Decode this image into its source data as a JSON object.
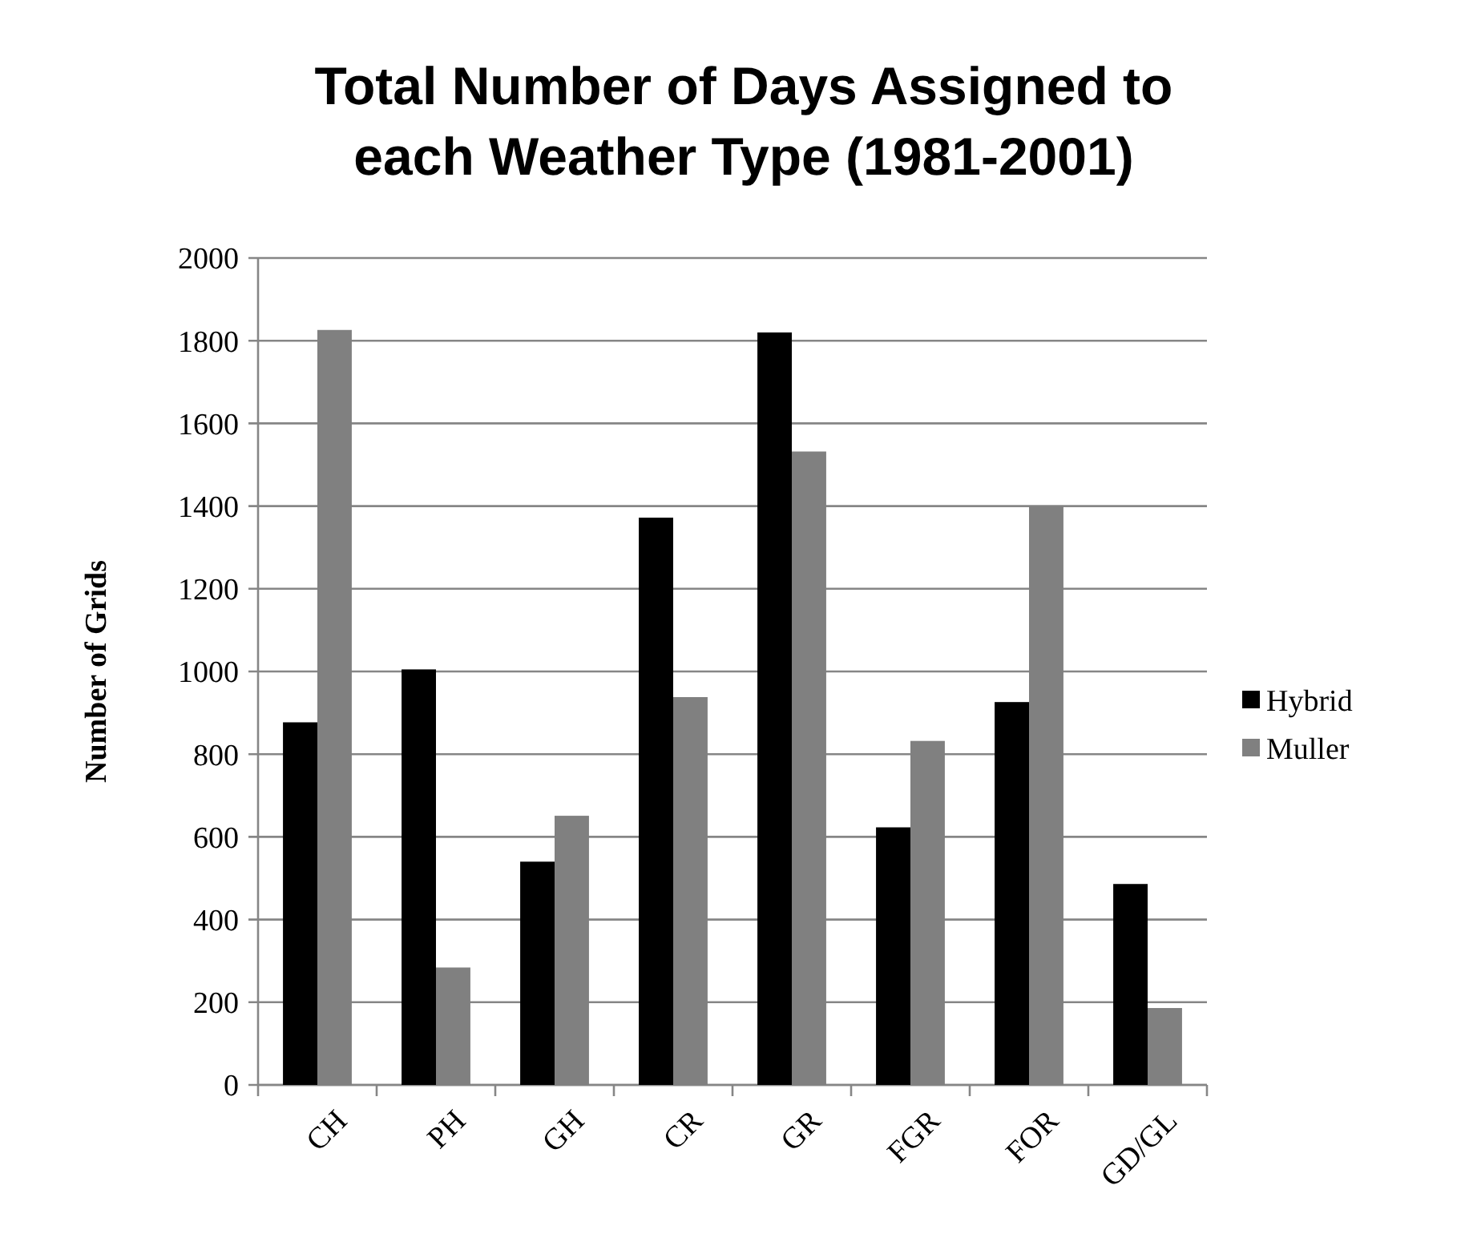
{
  "chart_data": {
    "type": "bar",
    "title": "Total Number of Days Assigned to each Weather Type (1981-2001)",
    "ylabel": "Number of Grids",
    "categories": [
      "CH",
      "PH",
      "GH",
      "CR",
      "GR",
      "FGR",
      "FOR",
      "GD/GL"
    ],
    "series": [
      {
        "name": "Hybrid",
        "color": "#000000",
        "values": [
          877,
          1005,
          540,
          1372,
          1820,
          623,
          926,
          486
        ]
      },
      {
        "name": "Muller",
        "color": "#808080",
        "values": [
          1826,
          284,
          651,
          938,
          1532,
          832,
          1400,
          186
        ]
      }
    ],
    "ylim": [
      0,
      2000
    ],
    "yticks": [
      0,
      200,
      400,
      600,
      800,
      1000,
      1200,
      1400,
      1600,
      1800,
      2000
    ],
    "grid": "y",
    "legend": "right"
  }
}
